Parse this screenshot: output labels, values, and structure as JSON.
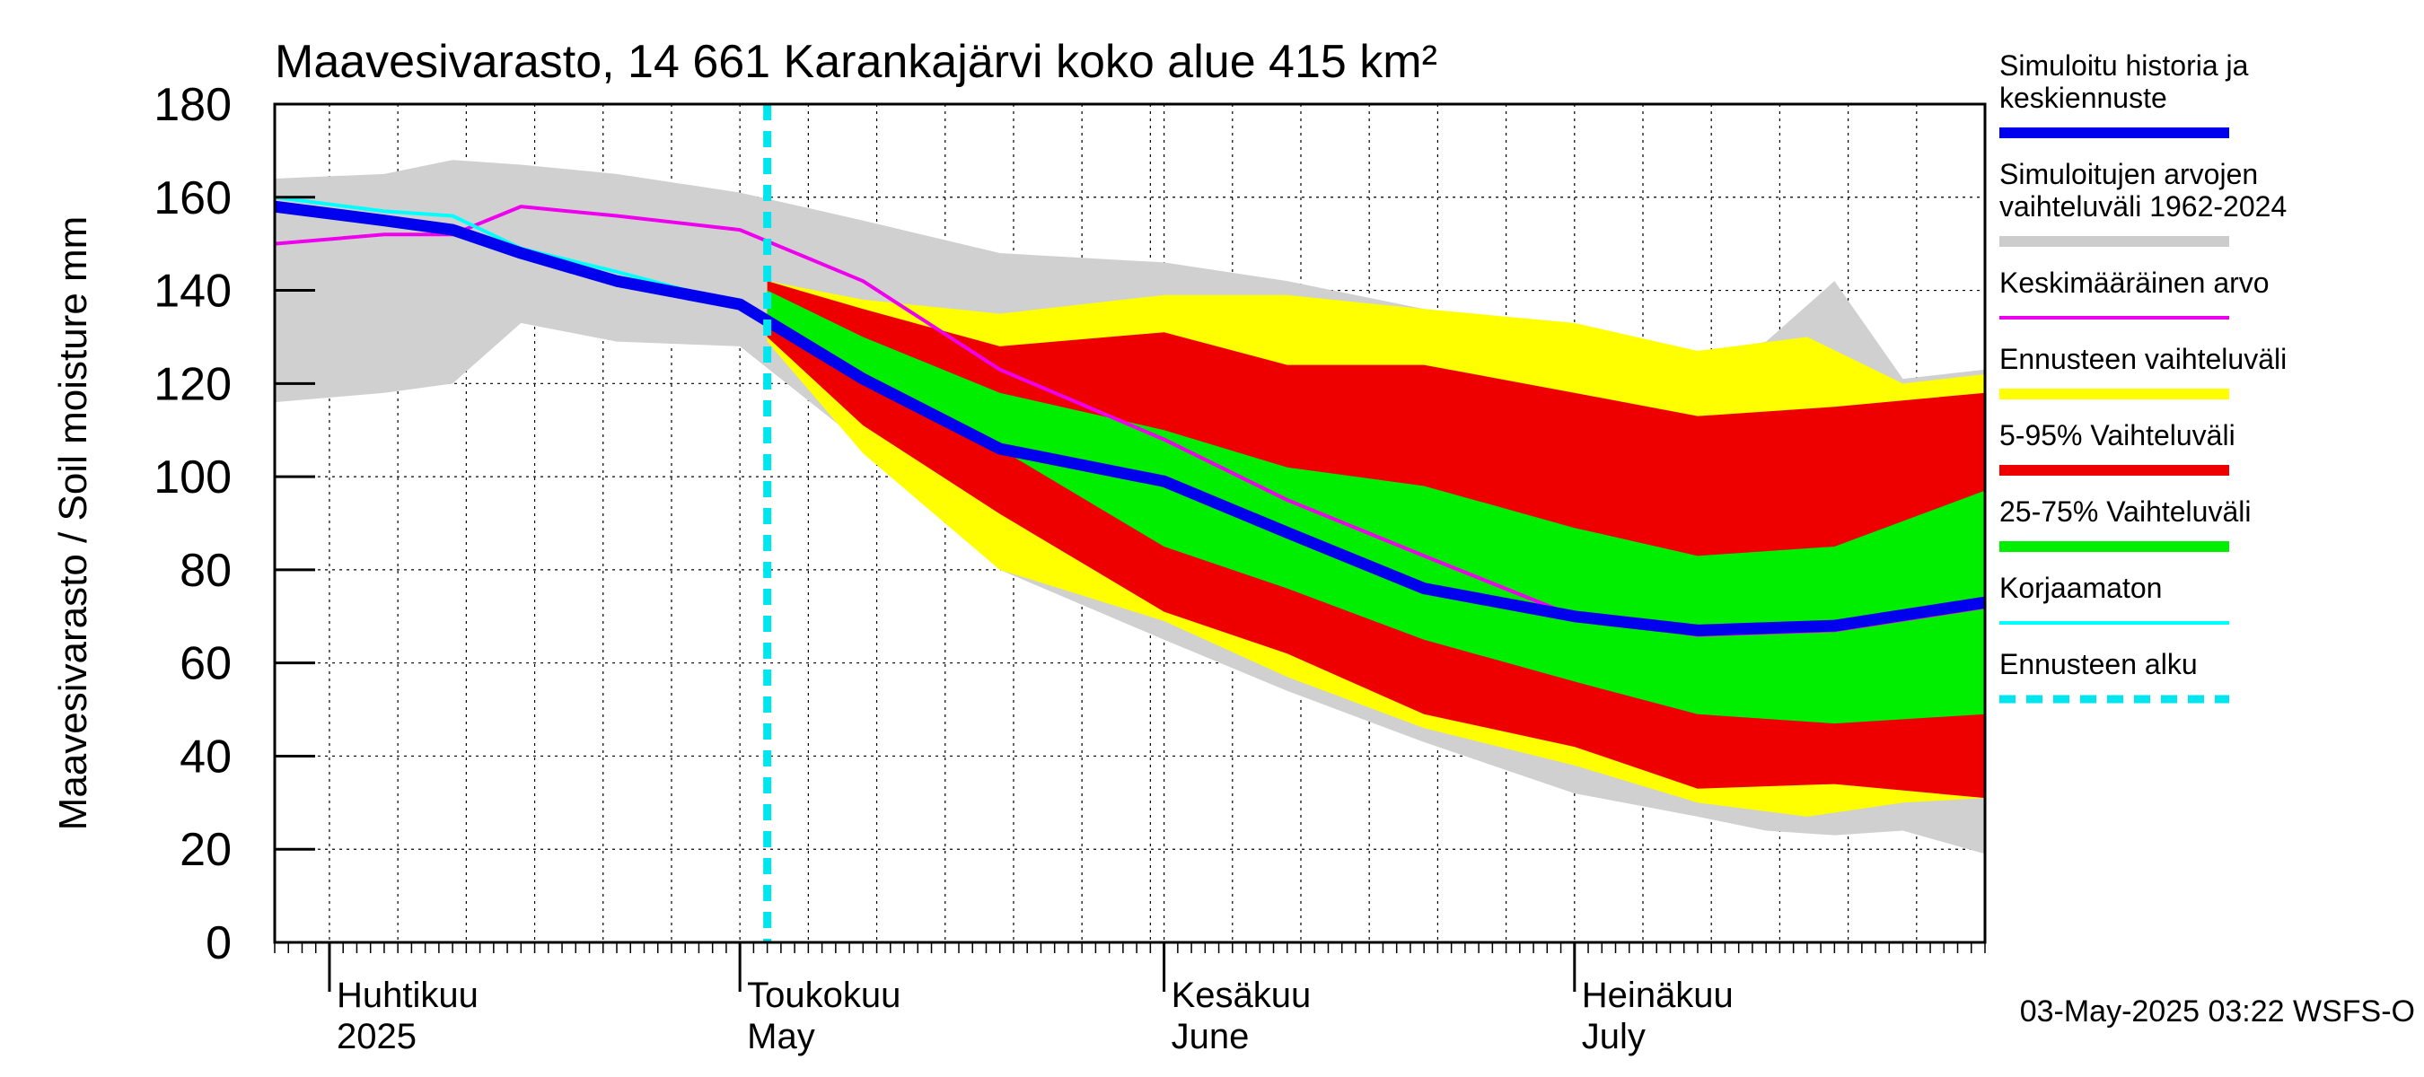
{
  "chart_data": {
    "type": "area",
    "title": "Maavesivarasto, 14 661 Karankajärvi koko alue 415 km²",
    "ylabel": "Maavesivarasto / Soil moisture   mm",
    "ylim": [
      0,
      180
    ],
    "yticks": [
      0,
      20,
      40,
      60,
      80,
      100,
      120,
      140,
      160,
      180
    ],
    "xlim": [
      "2025-03-28",
      "2025-07-31"
    ],
    "month_labels": [
      {
        "date": "2025-04-01",
        "fi": "Huhtikuu",
        "en": "2025"
      },
      {
        "date": "2025-05-01",
        "fi": "Toukokuu",
        "en": "May"
      },
      {
        "date": "2025-06-01",
        "fi": "Kesäkuu",
        "en": "June"
      },
      {
        "date": "2025-07-01",
        "fi": "Heinäkuu",
        "en": "July"
      }
    ],
    "forecast_start": "2025-05-03",
    "footer": "03-May-2025 03:22 WSFS-O",
    "legend": [
      {
        "label": "Simuloitu historia ja keskiennuste",
        "color": "#0000ee",
        "style": "thick"
      },
      {
        "label": "Simuloitujen arvojen vaihteluväli 1962-2024",
        "color": "#cccccc",
        "style": "band"
      },
      {
        "label": "Keskimääräinen arvo",
        "color": "#ee00ee",
        "style": "line"
      },
      {
        "label": "Ennusteen vaihteluväli",
        "color": "#ffff00",
        "style": "band"
      },
      {
        "label": "5-95% Vaihteluväli",
        "color": "#ee0000",
        "style": "band"
      },
      {
        "label": "25-75% Vaihteluväli",
        "color": "#00ee00",
        "style": "band"
      },
      {
        "label": "Korjaamaton",
        "color": "#00ffff",
        "style": "line"
      },
      {
        "label": "Ennusteen alku",
        "color": "#00e5ee",
        "style": "dashed"
      }
    ],
    "series": [
      {
        "name": "Simuloitujen arvojen vaihteluväli 1962-2024",
        "kind": "band",
        "color": "#d0d0d0",
        "x": [
          "2025-03-28",
          "2025-04-05",
          "2025-04-10",
          "2025-04-15",
          "2025-04-22",
          "2025-05-01",
          "2025-05-10",
          "2025-05-20",
          "2025-06-01",
          "2025-06-10",
          "2025-06-20",
          "2025-07-01",
          "2025-07-10",
          "2025-07-15",
          "2025-07-20",
          "2025-07-25",
          "2025-07-31"
        ],
        "upper": [
          164,
          165,
          168,
          167,
          165,
          161,
          155,
          148,
          146,
          142,
          136,
          132,
          126,
          129,
          142,
          121,
          123
        ],
        "lower": [
          116,
          118,
          120,
          133,
          129,
          128,
          107,
          80,
          65,
          54,
          43,
          32,
          27,
          24,
          23,
          24,
          19
        ]
      },
      {
        "name": "Ennusteen vaihteluväli",
        "kind": "band",
        "color": "#ffff00",
        "x": [
          "2025-05-03",
          "2025-05-10",
          "2025-05-20",
          "2025-06-01",
          "2025-06-10",
          "2025-06-20",
          "2025-07-01",
          "2025-07-10",
          "2025-07-18",
          "2025-07-25",
          "2025-07-31"
        ],
        "upper": [
          142,
          138,
          135,
          139,
          139,
          136,
          133,
          127,
          130,
          120,
          122
        ],
        "lower": [
          129,
          105,
          80,
          69,
          57,
          46,
          38,
          30,
          27,
          30,
          31
        ]
      },
      {
        "name": "5-95% Vaihteluväli",
        "kind": "band",
        "color": "#ee0000",
        "x": [
          "2025-05-03",
          "2025-05-10",
          "2025-05-20",
          "2025-06-01",
          "2025-06-10",
          "2025-06-20",
          "2025-07-01",
          "2025-07-10",
          "2025-07-20",
          "2025-07-31"
        ],
        "upper": [
          142,
          136,
          128,
          131,
          124,
          124,
          118,
          113,
          115,
          118
        ],
        "lower": [
          130,
          111,
          92,
          71,
          62,
          49,
          42,
          33,
          34,
          31
        ]
      },
      {
        "name": "25-75% Vaihteluväli",
        "kind": "band",
        "color": "#00ee00",
        "x": [
          "2025-05-03",
          "2025-05-10",
          "2025-05-20",
          "2025-06-01",
          "2025-06-10",
          "2025-06-20",
          "2025-07-01",
          "2025-07-10",
          "2025-07-20",
          "2025-07-31"
        ],
        "upper": [
          140,
          130,
          118,
          110,
          102,
          98,
          89,
          83,
          85,
          97
        ],
        "lower": [
          134,
          121,
          106,
          85,
          76,
          65,
          56,
          49,
          47,
          49
        ]
      },
      {
        "name": "Keskimääräinen arvo",
        "kind": "line",
        "color": "#ee00ee",
        "x": [
          "2025-03-28",
          "2025-04-05",
          "2025-04-10",
          "2025-04-15",
          "2025-04-22",
          "2025-05-01",
          "2025-05-10",
          "2025-05-20",
          "2025-06-01",
          "2025-06-10",
          "2025-06-20",
          "2025-07-01",
          "2025-07-10",
          "2025-07-20",
          "2025-07-31"
        ],
        "values": [
          150,
          152,
          152,
          158,
          156,
          153,
          142,
          123,
          108,
          95,
          83,
          70,
          66,
          67,
          72
        ]
      },
      {
        "name": "Korjaamaton",
        "kind": "line",
        "color": "#00ffff",
        "x": [
          "2025-03-28",
          "2025-04-05",
          "2025-04-10",
          "2025-04-15",
          "2025-04-22",
          "2025-05-01"
        ],
        "values": [
          160,
          157,
          156,
          149,
          144,
          137
        ]
      },
      {
        "name": "Simuloitu historia ja keskiennuste",
        "kind": "line",
        "color": "#0000ee",
        "x": [
          "2025-03-28",
          "2025-04-05",
          "2025-04-10",
          "2025-04-15",
          "2025-04-22",
          "2025-05-01",
          "2025-05-10",
          "2025-05-20",
          "2025-06-01",
          "2025-06-10",
          "2025-06-20",
          "2025-07-01",
          "2025-07-10",
          "2025-07-20",
          "2025-07-31"
        ],
        "values": [
          158,
          155,
          153,
          148,
          142,
          137,
          121,
          106,
          99,
          88,
          76,
          70,
          67,
          68,
          73
        ]
      }
    ]
  }
}
